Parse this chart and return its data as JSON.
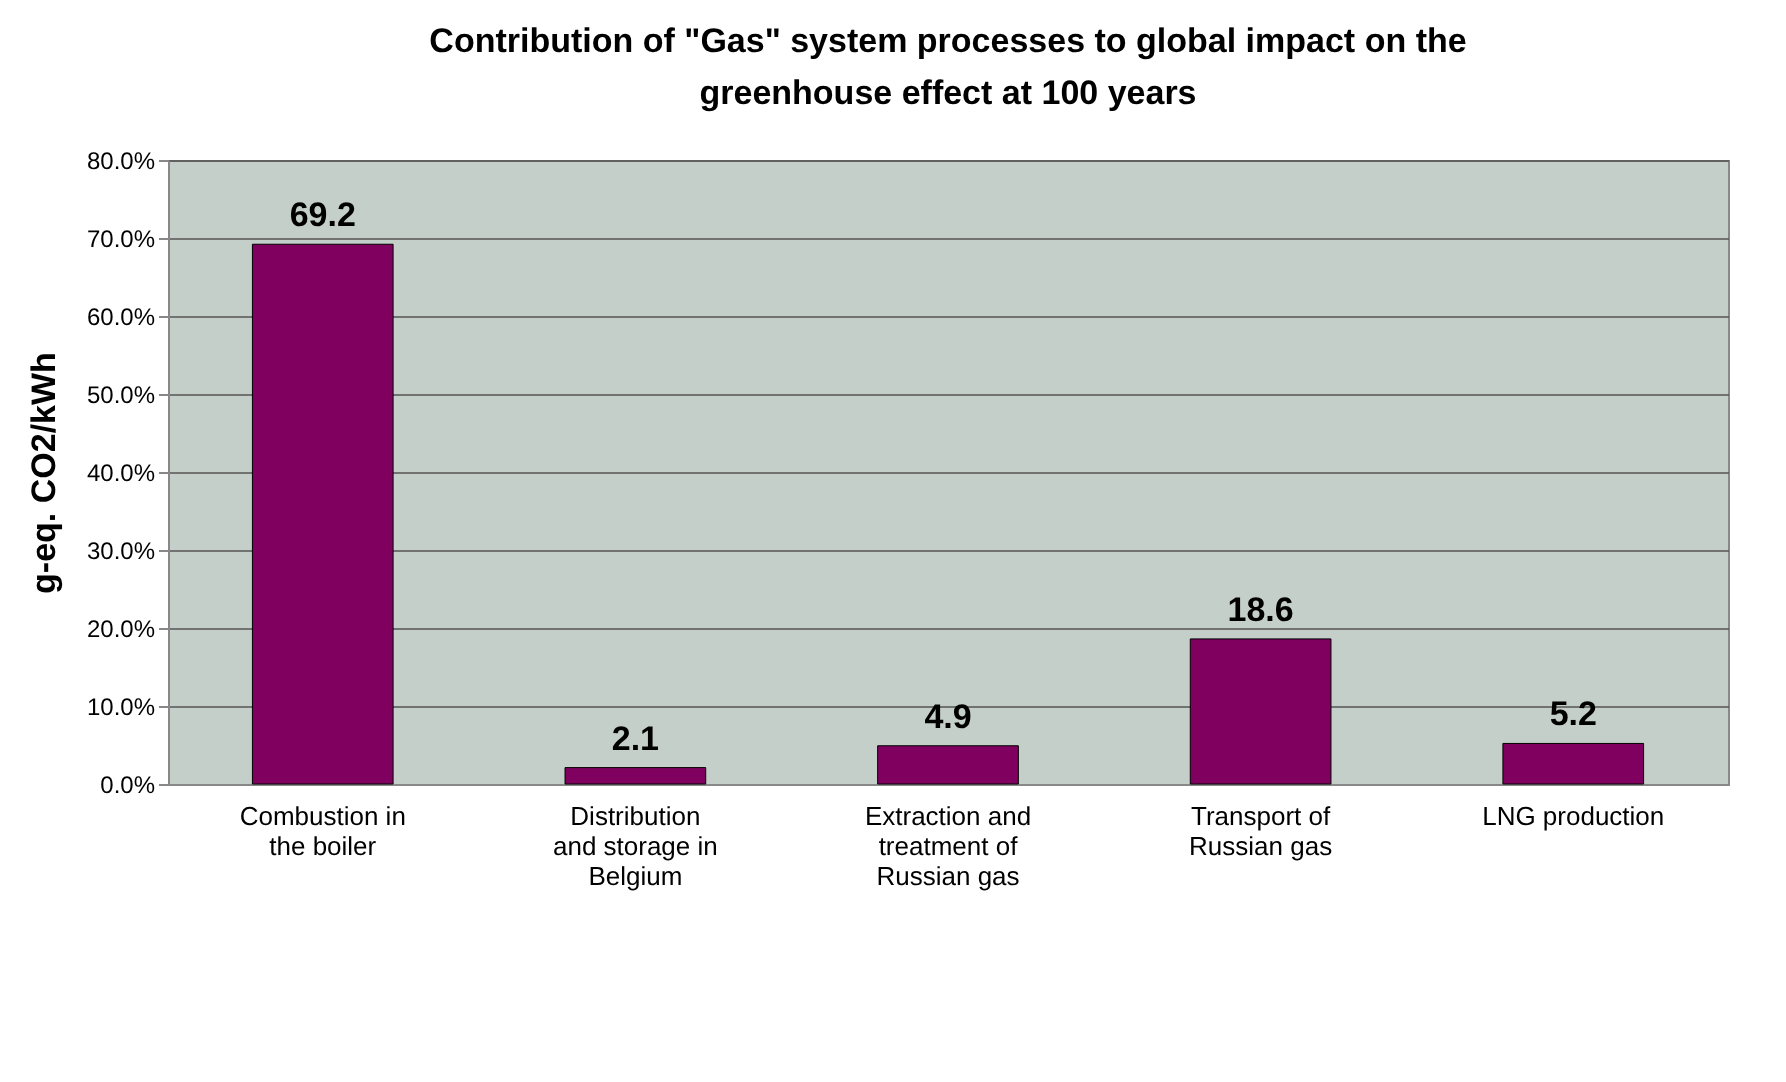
{
  "chart_data": {
    "type": "bar",
    "title": "Contribution of \"Gas\" system processes to global impact on the greenhouse effect at 100 years",
    "ylabel": "g-eq. CO2/kWh",
    "categories": [
      "Combustion in the boiler",
      "Distribution and storage in Belgium",
      "Extraction and treatment of Russian gas",
      "Transport of Russian gas",
      "LNG production"
    ],
    "values": [
      69.2,
      2.1,
      4.9,
      18.6,
      5.2
    ],
    "color": "#800060",
    "ylim": [
      0,
      80
    ],
    "yticks": [
      {
        "value": 0,
        "label": "0.0%"
      },
      {
        "value": 10,
        "label": "10.0%"
      },
      {
        "value": 20,
        "label": "20.0%"
      },
      {
        "value": 30,
        "label": "30.0%"
      },
      {
        "value": 40,
        "label": "40.0%"
      },
      {
        "value": 50,
        "label": "50.0%"
      },
      {
        "value": 60,
        "label": "60.0%"
      },
      {
        "value": 70,
        "label": "70.0%"
      },
      {
        "value": 80,
        "label": "80.0%"
      }
    ],
    "data_labels": true,
    "grid": "y"
  }
}
